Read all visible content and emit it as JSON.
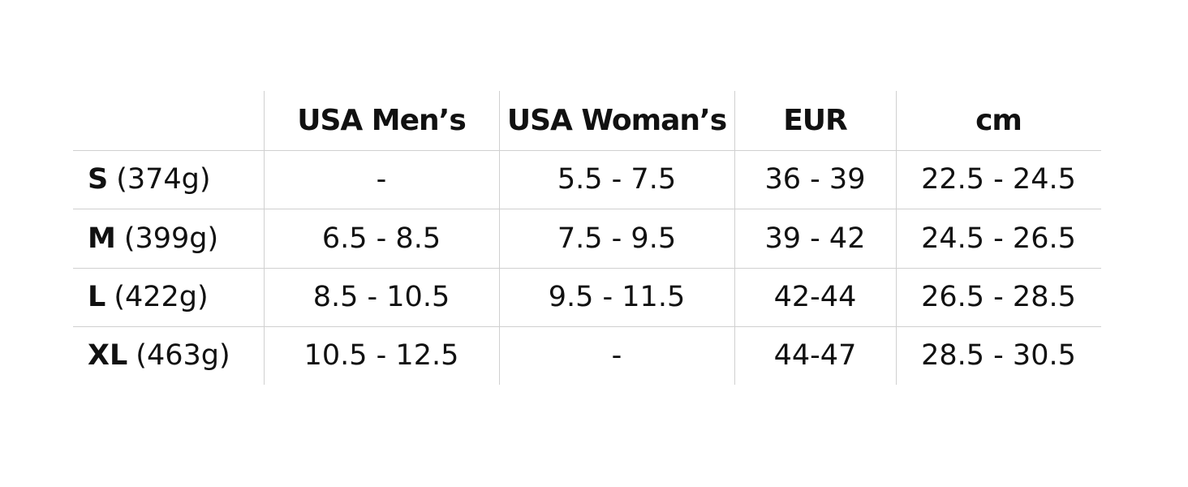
{
  "table": {
    "columns": [
      "USA Men’s",
      "USA Woman’s",
      "EUR",
      "cm"
    ],
    "rows": [
      {
        "size": "S",
        "weight": "(374g)",
        "cells": [
          "-",
          "5.5 - 7.5",
          "36 - 39",
          "22.5 - 24.5"
        ]
      },
      {
        "size": "M",
        "weight": "(399g)",
        "cells": [
          "6.5 - 8.5",
          "7.5 - 9.5",
          "39 - 42",
          "24.5 - 26.5"
        ]
      },
      {
        "size": "L",
        "weight": "(422g)",
        "cells": [
          "8.5 - 10.5",
          "9.5 - 11.5",
          "42-44",
          "26.5 - 28.5"
        ]
      },
      {
        "size": "XL",
        "weight": "(463g)",
        "cells": [
          "10.5 - 12.5",
          "-",
          "44-47",
          "28.5 - 30.5"
        ]
      }
    ]
  }
}
